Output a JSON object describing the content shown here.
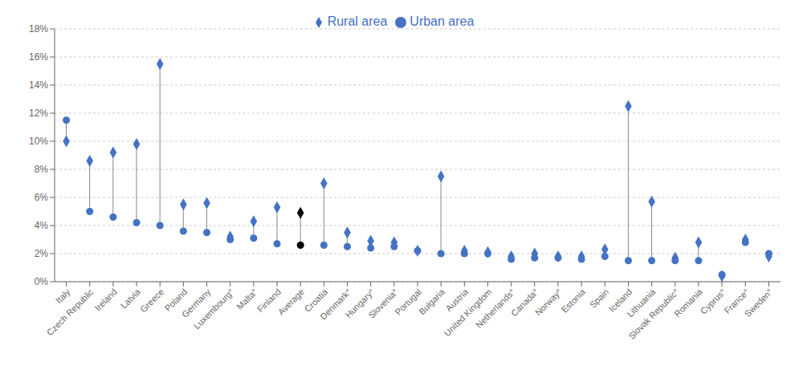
{
  "chart_data": {
    "type": "dumbbell",
    "categories": [
      "Italy",
      "Czech Republic",
      "Ireland",
      "Latvia",
      "Greece",
      "Poland",
      "Germany",
      "Luxembourg°",
      "Malta°",
      "Finland",
      "Average",
      "Croatia",
      "Denmark°",
      "Hungary°",
      "Slovenia°",
      "Portugal",
      "Bulgaria",
      "Austria",
      "United Kingdom",
      "Netherlands°",
      "Canada°",
      "Norway°",
      "Estonia",
      "Spain",
      "Iceland",
      "Lithuania",
      "Slovak Republic°",
      "Romania",
      "Cyprus°",
      "France°",
      "Sweden°"
    ],
    "series": [
      {
        "name": "Rural area",
        "marker": "diamond",
        "colors": [
          "#4472C4",
          "#4472C4",
          "#4472C4",
          "#4472C4",
          "#4472C4",
          "#4472C4",
          "#4472C4",
          "#4472C4",
          "#4472C4",
          "#4472C4",
          "#000000",
          "#4472C4",
          "#4472C4",
          "#4472C4",
          "#4472C4",
          "#4472C4",
          "#4472C4",
          "#4472C4",
          "#4472C4",
          "#4472C4",
          "#4472C4",
          "#4472C4",
          "#4472C4",
          "#4472C4",
          "#4472C4",
          "#4472C4",
          "#4472C4",
          "#4472C4",
          "#4472C4",
          "#4472C4",
          "#4472C4"
        ],
        "values": [
          0.1,
          0.086,
          0.092,
          0.098,
          0.155,
          0.055,
          0.056,
          0.032,
          0.043,
          0.053,
          0.049,
          0.07,
          0.035,
          0.029,
          0.028,
          0.022,
          0.075,
          0.022,
          0.021,
          0.018,
          0.02,
          0.018,
          0.018,
          0.023,
          0.125,
          0.057,
          0.017,
          0.028,
          0.004,
          0.03,
          0.018
        ]
      },
      {
        "name": "Urban area",
        "marker": "circle",
        "colors": [
          "#4472C4",
          "#4472C4",
          "#4472C4",
          "#4472C4",
          "#4472C4",
          "#4472C4",
          "#4472C4",
          "#4472C4",
          "#4472C4",
          "#4472C4",
          "#000000",
          "#4472C4",
          "#4472C4",
          "#4472C4",
          "#4472C4",
          "#4472C4",
          "#4472C4",
          "#4472C4",
          "#4472C4",
          "#4472C4",
          "#4472C4",
          "#4472C4",
          "#4472C4",
          "#4472C4",
          "#4472C4",
          "#4472C4",
          "#4472C4",
          "#4472C4",
          "#4472C4",
          "#4472C4",
          "#4472C4"
        ],
        "values": [
          0.115,
          0.05,
          0.046,
          0.042,
          0.04,
          0.036,
          0.035,
          0.03,
          0.031,
          0.027,
          0.026,
          0.026,
          0.025,
          0.024,
          0.025,
          0.022,
          0.02,
          0.02,
          0.02,
          0.016,
          0.017,
          0.017,
          0.016,
          0.018,
          0.015,
          0.015,
          0.015,
          0.015,
          0.005,
          0.028,
          0.02
        ]
      }
    ],
    "ylim": [
      0,
      0.18
    ],
    "yticks": [
      {
        "value": 0.0,
        "label": "0%"
      },
      {
        "value": 0.02,
        "label": "2%"
      },
      {
        "value": 0.04,
        "label": "4%"
      },
      {
        "value": 0.06,
        "label": "6%"
      },
      {
        "value": 0.08,
        "label": "8%"
      },
      {
        "value": 0.1,
        "label": "10%"
      },
      {
        "value": 0.12,
        "label": "12%"
      },
      {
        "value": 0.14,
        "label": "14%"
      },
      {
        "value": 0.16,
        "label": "16%"
      },
      {
        "value": 0.18,
        "label": "18%"
      }
    ],
    "grid": true,
    "legend": "top"
  }
}
